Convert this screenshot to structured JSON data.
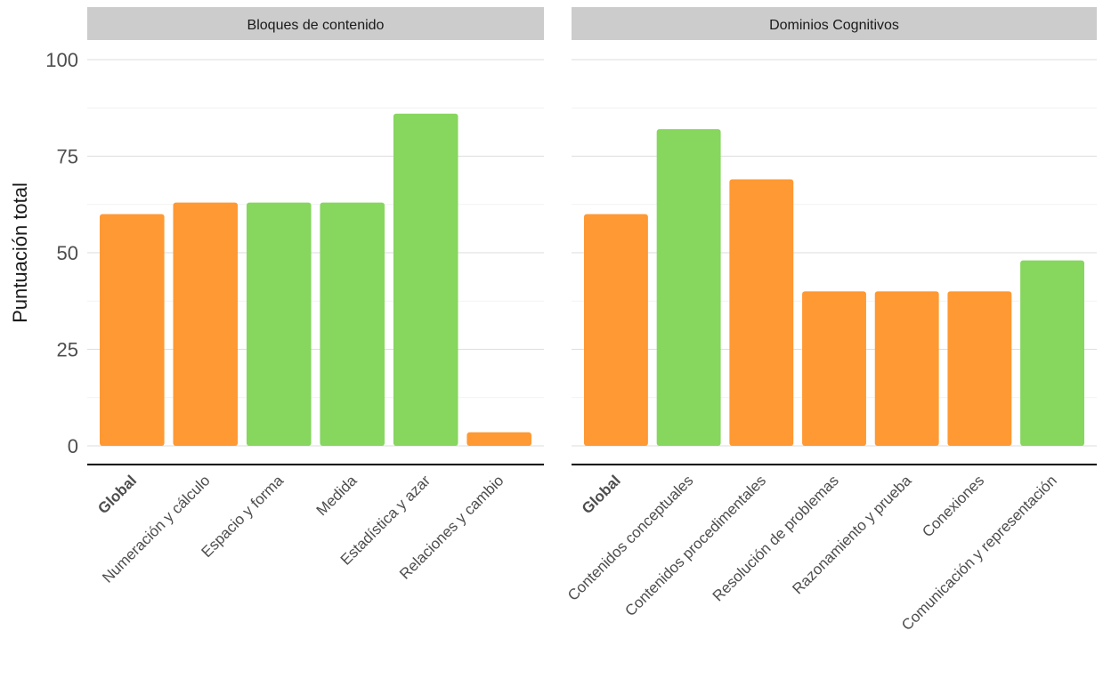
{
  "chart_data": {
    "type": "bar",
    "ylabel": "Puntuación total",
    "xlabel": "",
    "ylim": [
      0,
      100
    ],
    "yticks": [
      0,
      25,
      50,
      75,
      100
    ],
    "grid": true,
    "legend": "none",
    "colors": {
      "orange": "#FF9933",
      "green": "#87D65E"
    },
    "panels": [
      {
        "title": "Bloques de contenido",
        "categories": [
          "Global",
          "Numeración y cálculo",
          "Espacio y forma",
          "Medida",
          "Estadística y azar",
          "Relaciones y cambio"
        ],
        "values": [
          60,
          63,
          63,
          63,
          86,
          3.5
        ],
        "bar_colors": [
          "orange",
          "orange",
          "green",
          "green",
          "green",
          "orange"
        ],
        "bold": [
          true,
          false,
          false,
          false,
          false,
          false
        ]
      },
      {
        "title": "Dominios Cognitivos",
        "categories": [
          "Global",
          "Contenidos conceptuales",
          "Contenidos procedimentales",
          "Resolución de problemas",
          "Razonamiento y prueba",
          "Conexiones",
          "Comunicación y representación"
        ],
        "values": [
          60,
          82,
          69,
          40,
          40,
          40,
          48
        ],
        "bar_colors": [
          "orange",
          "green",
          "orange",
          "orange",
          "orange",
          "orange",
          "green"
        ],
        "bold": [
          true,
          false,
          false,
          false,
          false,
          false,
          false
        ]
      }
    ]
  }
}
